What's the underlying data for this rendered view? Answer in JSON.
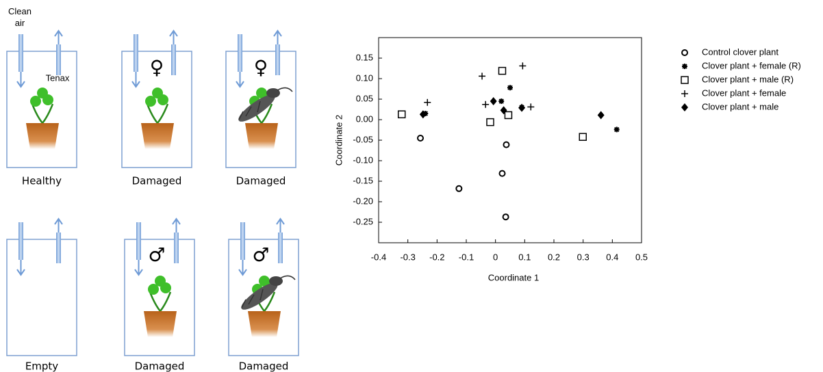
{
  "diagram": {
    "annotations": [
      "Clean air",
      "Tenax"
    ],
    "panels": [
      {
        "label": "Healthy"
      },
      {
        "label": "Damaged",
        "symbol": "♀"
      },
      {
        "label": "Damaged",
        "symbol": "♀"
      },
      {
        "label": "Empty"
      },
      {
        "label": "Damaged",
        "symbol": "♂"
      },
      {
        "label": "Damaged",
        "symbol": "♂"
      }
    ]
  },
  "chart_data": {
    "type": "scatter",
    "x_label": "Coordinate 1",
    "y_label": "Coordinate 2",
    "xlim": [
      -0.4,
      0.5
    ],
    "xticks": [
      -0.4,
      -0.3,
      -0.2,
      -0.1,
      0,
      0.1,
      0.2,
      0.3,
      0.4,
      0.5
    ],
    "ylim": [
      -0.3,
      0.2
    ],
    "yticks": [
      0.15,
      {
        "value": 0.1,
        "label": "0.10"
      },
      0.05,
      {
        "value": 0,
        "label": "0.00"
      },
      -0.05,
      {
        "value": -0.1,
        "label": "-0.10"
      },
      -0.15,
      {
        "value": -0.2,
        "label": "-0.20"
      },
      -0.25
    ],
    "legend": "right",
    "series": [
      {
        "name": "Control clover plant",
        "marker": "circle",
        "color": "#000000",
        "x": [
          -0.257,
          0.037,
          -0.125,
          0.023,
          0.035
        ],
        "y": [
          -0.045,
          -0.061,
          -0.168,
          -0.131,
          -0.237
        ]
      },
      {
        "name": "Clover plant + female (R)",
        "marker": "asterisk",
        "color": "#000000",
        "x": [
          -0.24,
          0.05,
          0.02,
          0.09,
          0.415
        ],
        "y": [
          0.015,
          0.078,
          0.045,
          0.03,
          -0.024
        ]
      },
      {
        "name": "Clover plant + male (R)",
        "marker": "square",
        "color": "#000000",
        "x": [
          -0.321,
          0.023,
          -0.018,
          0.044,
          0.299
        ],
        "y": [
          0.013,
          0.119,
          -0.006,
          0.011,
          -0.042
        ]
      },
      {
        "name": "Clover plant + female",
        "marker": "plus",
        "color": "#000000",
        "x": [
          -0.046,
          -0.233,
          -0.034,
          0.093,
          0.121
        ],
        "y": [
          0.106,
          0.042,
          0.037,
          0.131,
          0.031
        ]
      },
      {
        "name": "Clover plant + male",
        "marker": "diamond",
        "color": "#000000",
        "x": [
          -0.248,
          -0.007,
          0.028,
          0.09,
          0.361
        ],
        "y": [
          0.013,
          0.045,
          0.023,
          0.029,
          0.011
        ]
      }
    ]
  }
}
